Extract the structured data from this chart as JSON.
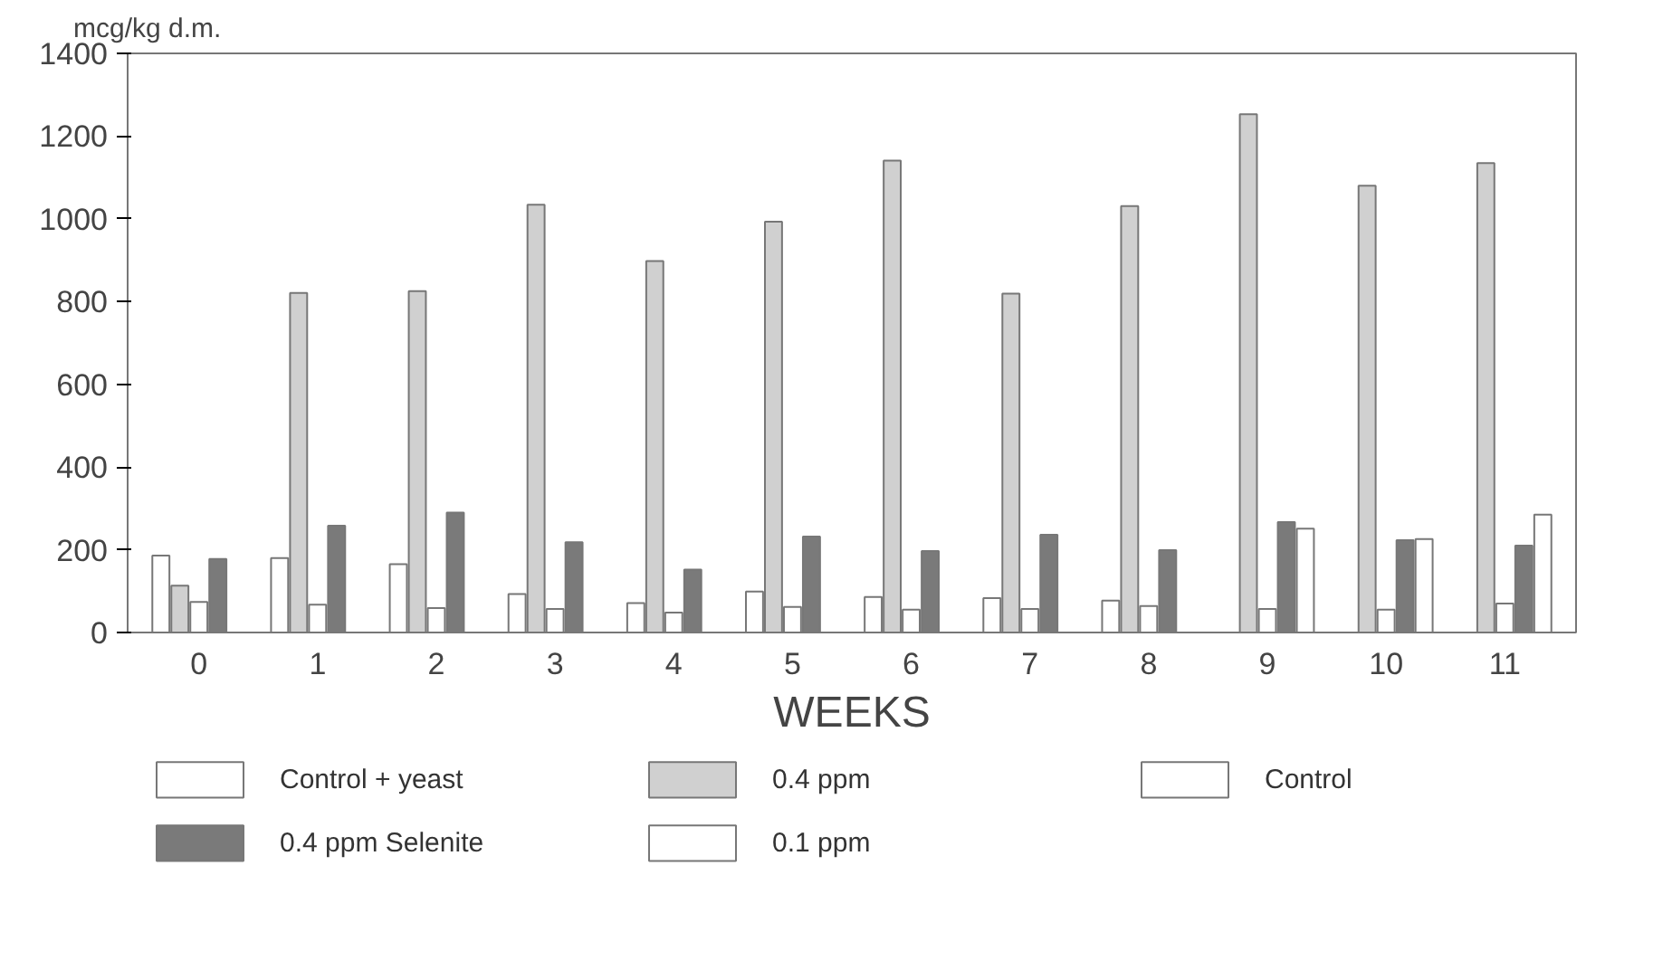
{
  "chart_data": {
    "type": "bar",
    "ylabel": "mcg/kg d.m.",
    "xlabel": "WEEKS",
    "categories": [
      "0",
      "1",
      "2",
      "3",
      "4",
      "5",
      "6",
      "7",
      "8",
      "9",
      "10",
      "11"
    ],
    "series": [
      {
        "name": "Control + yeast",
        "color": "#ffffff",
        "values": [
          186,
          180,
          165,
          93,
          71,
          99,
          86,
          83,
          77,
          null,
          null,
          null
        ]
      },
      {
        "name": "0.4 ppm",
        "color": "#d0d0d0",
        "values": [
          113,
          821,
          825,
          1034,
          898,
          993,
          1141,
          819,
          1031,
          1253,
          1080,
          1135
        ]
      },
      {
        "name": "Control",
        "color": "#ffffff",
        "values": [
          74,
          67,
          59,
          57,
          48,
          62,
          55,
          57,
          64,
          57,
          55,
          70
        ]
      },
      {
        "name": "0.4 ppm Selenite",
        "color": "#7a7a7a",
        "values": [
          178,
          258,
          290,
          218,
          152,
          232,
          197,
          236,
          199,
          267,
          223,
          210
        ]
      },
      {
        "name": "0.1 ppm",
        "color": "#ffffff",
        "values": [
          null,
          null,
          null,
          null,
          null,
          null,
          null,
          null,
          null,
          251,
          226,
          285
        ]
      }
    ],
    "ylim": [
      0,
      1400
    ],
    "yticks": [
      0,
      200,
      400,
      600,
      800,
      1000,
      1200,
      1400
    ],
    "grid": false,
    "legend": "bottom"
  }
}
